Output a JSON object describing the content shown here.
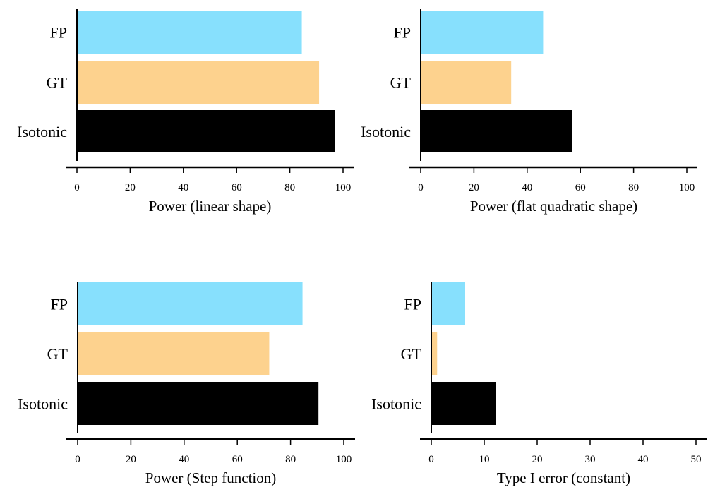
{
  "colors": {
    "FP": "#87E0FD",
    "GT": "#FDD28E",
    "Isotonic": "#000000",
    "axis": "#000000"
  },
  "chart_data": [
    {
      "type": "bar",
      "orientation": "horizontal",
      "categories": [
        "FP",
        "GT",
        "Isotonic"
      ],
      "values": [
        84.5,
        91,
        97
      ],
      "xlabel": "Power (linear shape)",
      "xlim": [
        0,
        100
      ],
      "xticks": [
        "0",
        "20",
        "40",
        "60",
        "80",
        "100"
      ],
      "grid": false
    },
    {
      "type": "bar",
      "orientation": "horizontal",
      "categories": [
        "FP",
        "GT",
        "Isotonic"
      ],
      "values": [
        46,
        34,
        57
      ],
      "xlabel": "Power (flat quadratic shape)",
      "xlim": [
        0,
        100
      ],
      "xticks": [
        "0",
        "20",
        "40",
        "60",
        "80",
        "100"
      ],
      "grid": false
    },
    {
      "type": "bar",
      "orientation": "horizontal",
      "categories": [
        "FP",
        "GT",
        "Isotonic"
      ],
      "values": [
        84.5,
        72,
        90.5
      ],
      "xlabel": "Power (Step function)",
      "xlim": [
        0,
        100
      ],
      "xticks": [
        "0",
        "20",
        "40",
        "60",
        "80",
        "100"
      ],
      "grid": false
    },
    {
      "type": "bar",
      "orientation": "horizontal",
      "categories": [
        "FP",
        "GT",
        "Isotonic"
      ],
      "values": [
        6.4,
        1.1,
        12.2
      ],
      "xlabel": "Type I error (constant)",
      "xlim": [
        0,
        50
      ],
      "xticks": [
        "0",
        "10",
        "20",
        "30",
        "40",
        "50"
      ],
      "grid": false
    }
  ]
}
